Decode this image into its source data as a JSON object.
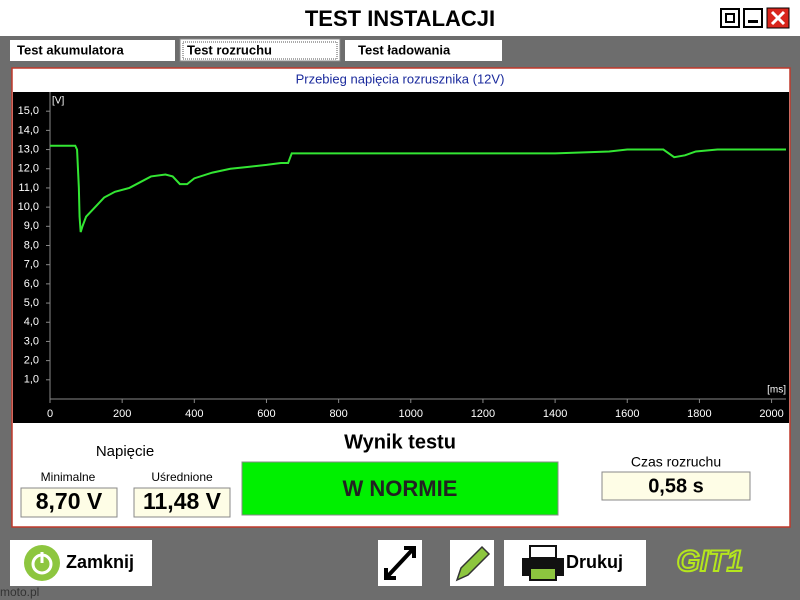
{
  "window": {
    "title": "TEST INSTALACJI"
  },
  "tabs": [
    "Test akumulatora",
    "Test rozruchu",
    "Test ładowania"
  ],
  "chart_data": {
    "type": "line",
    "title": "Przebieg napięcia rozrusznika (12V)",
    "y_unit": "[V]",
    "x_unit": "[ms]",
    "x": [
      0,
      70,
      75,
      80,
      82,
      85,
      90,
      100,
      120,
      150,
      180,
      220,
      250,
      280,
      320,
      340,
      360,
      380,
      400,
      450,
      500,
      550,
      600,
      640,
      660,
      670,
      700,
      800,
      1000,
      1200,
      1400,
      1550,
      1600,
      1700,
      1730,
      1760,
      1790,
      1850,
      2000,
      2040
    ],
    "values": [
      13.2,
      13.2,
      13.0,
      11.0,
      9.5,
      8.7,
      9.0,
      9.5,
      9.9,
      10.5,
      10.8,
      11.0,
      11.3,
      11.6,
      11.7,
      11.6,
      11.2,
      11.2,
      11.5,
      11.8,
      12.0,
      12.1,
      12.2,
      12.3,
      12.3,
      12.8,
      12.8,
      12.8,
      12.8,
      12.8,
      12.8,
      12.9,
      13.0,
      13.0,
      12.6,
      12.7,
      12.9,
      13.0,
      13.0,
      13.0
    ],
    "color": "#33e633",
    "xlim": [
      0,
      2040
    ],
    "ylim": [
      0,
      16
    ],
    "xticks": [
      0,
      200,
      400,
      600,
      800,
      1000,
      1200,
      1400,
      1600,
      1800,
      2000
    ],
    "yticks": [
      {
        "value": 1,
        "label": "1,0"
      },
      {
        "value": 2,
        "label": "2,0"
      },
      {
        "value": 3,
        "label": "3,0"
      },
      {
        "value": 4,
        "label": "4,0"
      },
      {
        "value": 5,
        "label": "5,0"
      },
      {
        "value": 6,
        "label": "6,0"
      },
      {
        "value": 7,
        "label": "7,0"
      },
      {
        "value": 8,
        "label": "8,0"
      },
      {
        "value": 9,
        "label": "9,0"
      },
      {
        "value": 10,
        "label": "10,0"
      },
      {
        "value": 11,
        "label": "11,0"
      },
      {
        "value": 12,
        "label": "12,0"
      },
      {
        "value": 13,
        "label": "13,0"
      },
      {
        "value": 14,
        "label": "14,0"
      },
      {
        "value": 15,
        "label": "15,0"
      }
    ],
    "grid": false
  },
  "results": {
    "voltage_title": "Napięcie",
    "min_label": "Minimalne",
    "min_value": "8,70 V",
    "avg_label": "Uśrednione",
    "avg_value": "11,48 V",
    "result_title": "Wynik testu",
    "result": "W NORMIE",
    "time_label": "Czas rozruchu",
    "time_value": "0,58 s"
  },
  "toolbar": {
    "close": "Zamknij",
    "print": "Drukuj",
    "logo": "GIT1"
  },
  "watermark": "moto.pl"
}
